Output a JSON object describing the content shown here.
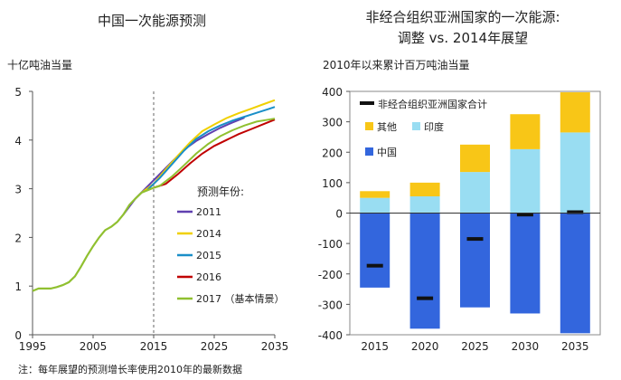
{
  "footnote": "注：每年展望的预测增长率使用2010年的最新数据",
  "chart_data": [
    {
      "type": "line",
      "title": "中国一次能源预测",
      "ylabel": "十亿吨油当量",
      "xlim": [
        1995,
        2035
      ],
      "ylim": [
        0,
        5
      ],
      "x_ticks": [
        1995,
        2005,
        2015,
        2025,
        2035
      ],
      "y_ticks": [
        0,
        1,
        2,
        3,
        4,
        5
      ],
      "reference_line_x": 2015,
      "legend_title": "预测年份:",
      "historical": {
        "x": [
          1995,
          1996,
          1997,
          1998,
          1999,
          2000,
          2001,
          2002,
          2003,
          2004,
          2005,
          2006,
          2007,
          2008,
          2009,
          2010,
          2011,
          2012,
          2013,
          2014,
          2015,
          2016
        ],
        "y": [
          0.9,
          0.95,
          0.95,
          0.95,
          0.98,
          1.02,
          1.08,
          1.2,
          1.4,
          1.62,
          1.82,
          2.0,
          2.15,
          2.22,
          2.32,
          2.47,
          2.67,
          2.8,
          2.92,
          2.97,
          3.02,
          3.06
        ]
      },
      "series": [
        {
          "name": "2011",
          "color": "#6040b0",
          "x": [
            2010,
            2012,
            2014,
            2016,
            2018,
            2020,
            2022,
            2024,
            2026,
            2028,
            2030
          ],
          "y": [
            2.47,
            2.8,
            3.05,
            3.3,
            3.55,
            3.8,
            3.98,
            4.12,
            4.25,
            4.36,
            4.46
          ]
        },
        {
          "name": "2014",
          "color": "#f0d000",
          "x": [
            2013,
            2015,
            2017,
            2019,
            2021,
            2023,
            2025,
            2027,
            2029,
            2031,
            2033,
            2035
          ],
          "y": [
            2.92,
            3.1,
            3.4,
            3.68,
            3.95,
            4.18,
            4.32,
            4.45,
            4.55,
            4.64,
            4.73,
            4.82
          ]
        },
        {
          "name": "2015",
          "color": "#1a8fc8",
          "x": [
            2014,
            2016,
            2018,
            2020,
            2022,
            2024,
            2026,
            2028,
            2030,
            2032,
            2034,
            2035
          ],
          "y": [
            2.98,
            3.22,
            3.5,
            3.78,
            4.02,
            4.18,
            4.3,
            4.4,
            4.48,
            4.56,
            4.64,
            4.68
          ]
        },
        {
          "name": "2016",
          "color": "#c00000",
          "x": [
            2015,
            2017,
            2019,
            2021,
            2023,
            2025,
            2027,
            2029,
            2031,
            2033,
            2035
          ],
          "y": [
            3.02,
            3.1,
            3.3,
            3.52,
            3.72,
            3.88,
            4.0,
            4.12,
            4.22,
            4.32,
            4.42
          ]
        },
        {
          "name": "2017 （基本情景）",
          "color": "#90c030",
          "x": [
            2016,
            2018,
            2020,
            2022,
            2024,
            2026,
            2028,
            2030,
            2032,
            2034,
            2035
          ],
          "y": [
            3.06,
            3.25,
            3.48,
            3.72,
            3.92,
            4.08,
            4.2,
            4.3,
            4.38,
            4.42,
            4.44
          ]
        }
      ]
    },
    {
      "type": "bar",
      "title": "非经合组织亚洲国家的一次能源:",
      "subtitle": "调整 vs. 2014年展望",
      "ylabel": "2010年以来累计百万吨油当量",
      "ylim": [
        -400,
        400
      ],
      "y_ticks": [
        -400,
        -300,
        -200,
        -100,
        0,
        100,
        200,
        300,
        400
      ],
      "categories": [
        "2015",
        "2020",
        "2025",
        "2030",
        "2035"
      ],
      "series": [
        {
          "name": "中国",
          "color": "#3366dd",
          "values": [
            -245,
            -380,
            -310,
            -330,
            -395
          ]
        },
        {
          "name": "印度",
          "color": "#99ddf2",
          "values": [
            50,
            55,
            135,
            210,
            265
          ]
        },
        {
          "name": "其他",
          "color": "#f8c617",
          "values": [
            22,
            45,
            90,
            115,
            132
          ]
        }
      ],
      "total": {
        "name": "非经合组织亚洲国家合计",
        "color": "#111111",
        "values": [
          -173,
          -280,
          -85,
          -5,
          3
        ]
      }
    }
  ]
}
